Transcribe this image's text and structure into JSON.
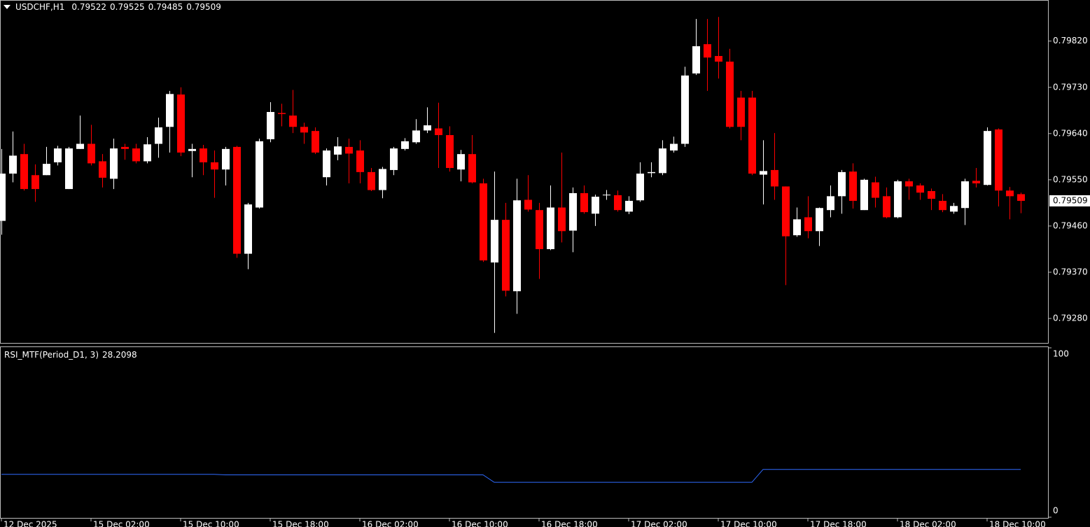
{
  "chart_data": [
    {
      "type": "candlestick",
      "symbol": "USDCHF,H1",
      "categories": [
        "12 Dec 2025",
        null,
        null,
        null,
        null,
        null,
        null,
        null,
        "15 Dec 02:00",
        null,
        null,
        null,
        null,
        null,
        null,
        null,
        "15 Dec 10:00",
        null,
        null,
        null,
        null,
        null,
        null,
        null,
        "15 Dec 18:00",
        null,
        null,
        null,
        null,
        null,
        null,
        null,
        "16 Dec 02:00",
        null,
        null,
        null,
        null,
        null,
        null,
        null,
        "16 Dec 10:00",
        null,
        null,
        null,
        null,
        null,
        null,
        null,
        "16 Dec 18:00",
        null,
        null,
        null,
        null,
        null,
        null,
        null,
        "17 Dec 02:00",
        null,
        null,
        null,
        null,
        null,
        null,
        null,
        "17 Dec 10:00",
        null,
        null,
        null,
        null,
        null,
        null,
        null,
        "17 Dec 18:00",
        null,
        null,
        null,
        null,
        null,
        null,
        null,
        "18 Dec 02:00",
        null,
        null,
        null,
        null,
        null,
        null,
        null,
        "18 Dec 10:00",
        null,
        null,
        null
      ],
      "open": [
        0.7947,
        0.79562,
        0.796,
        0.79559,
        0.79559,
        0.79584,
        0.79532,
        0.7961,
        0.7962,
        0.79586,
        0.79552,
        0.79614,
        0.79611,
        0.79586,
        0.7962,
        0.79653,
        0.79716,
        0.79606,
        0.79611,
        0.79584,
        0.7957,
        0.79614,
        0.79406,
        0.79496,
        0.79629,
        0.7968,
        0.79675,
        0.79653,
        0.79645,
        0.79555,
        0.79599,
        0.79614,
        0.79607,
        0.79565,
        0.7953,
        0.79569,
        0.7961,
        0.79623,
        0.79646,
        0.7965,
        0.79637,
        0.7957,
        0.796,
        0.79543,
        0.79389,
        0.79472,
        0.79333,
        0.79511,
        0.79491,
        0.79415,
        0.79496,
        0.79451,
        0.79524,
        0.79484,
        0.7952,
        0.7952,
        0.79488,
        0.7951,
        0.79563,
        0.79563,
        0.79607,
        0.7962,
        0.79757,
        0.79814,
        0.79791,
        0.7978,
        0.7971,
        0.7971,
        0.7956,
        0.79569,
        0.79537,
        0.79442,
        0.79477,
        0.7945,
        0.79491,
        0.79518,
        0.79566,
        0.79491,
        0.79545,
        0.79518,
        0.79477,
        0.79547,
        0.79539,
        0.79528,
        0.79509,
        0.79488,
        0.79495,
        0.79548,
        0.7954,
        0.79648,
        0.79529,
        0.79522
      ],
      "high": [
        0.7961,
        0.79644,
        0.7962,
        0.7958,
        0.79614,
        0.79616,
        0.79614,
        0.79675,
        0.79657,
        0.796,
        0.7963,
        0.7962,
        0.7962,
        0.79633,
        0.79671,
        0.79723,
        0.7973,
        0.7962,
        0.79618,
        0.79607,
        0.79614,
        0.79616,
        0.79505,
        0.7963,
        0.79701,
        0.79698,
        0.79725,
        0.79661,
        0.79652,
        0.79611,
        0.79633,
        0.7963,
        0.79627,
        0.79573,
        0.79575,
        0.79614,
        0.79631,
        0.79668,
        0.79691,
        0.797,
        0.79654,
        0.79608,
        0.79637,
        0.79552,
        0.79566,
        0.79505,
        0.79552,
        0.79559,
        0.79505,
        0.79539,
        0.79603,
        0.79535,
        0.79539,
        0.79521,
        0.7953,
        0.79529,
        0.79518,
        0.79584,
        0.79584,
        0.79627,
        0.79634,
        0.7977,
        0.79863,
        0.79863,
        0.79867,
        0.79805,
        0.79723,
        0.79723,
        0.79627,
        0.79641,
        0.79537,
        0.79496,
        0.79518,
        0.79496,
        0.79539,
        0.79569,
        0.79582,
        0.79552,
        0.79556,
        0.79535,
        0.7955,
        0.79552,
        0.79543,
        0.79533,
        0.79522,
        0.79505,
        0.79552,
        0.79573,
        0.79652,
        0.7965,
        0.79536,
        0.79525
      ],
      "low": [
        0.79443,
        0.79545,
        0.79529,
        0.79507,
        0.79559,
        0.79578,
        0.79532,
        0.7961,
        0.79578,
        0.79535,
        0.79532,
        0.79589,
        0.79582,
        0.79582,
        0.79593,
        0.79603,
        0.79596,
        0.79555,
        0.79559,
        0.79515,
        0.79539,
        0.79398,
        0.79376,
        0.79494,
        0.79623,
        0.79654,
        0.79641,
        0.7962,
        0.796,
        0.79539,
        0.79588,
        0.79543,
        0.79543,
        0.79528,
        0.79514,
        0.79559,
        0.79607,
        0.7962,
        0.79641,
        0.79573,
        0.79566,
        0.79547,
        0.79543,
        0.7939,
        0.79252,
        0.79323,
        0.79289,
        0.79488,
        0.79357,
        0.79413,
        0.79428,
        0.79409,
        0.79484,
        0.7946,
        0.79511,
        0.79488,
        0.79483,
        0.79507,
        0.79555,
        0.79559,
        0.79603,
        0.79614,
        0.79754,
        0.79723,
        0.79747,
        0.7965,
        0.79627,
        0.79559,
        0.79502,
        0.79511,
        0.79345,
        0.79439,
        0.79436,
        0.79421,
        0.79477,
        0.79484,
        0.79494,
        0.79491,
        0.79496,
        0.79475,
        0.79475,
        0.79511,
        0.79511,
        0.79491,
        0.79487,
        0.79484,
        0.79462,
        0.79535,
        0.79539,
        0.79498,
        0.79473,
        0.79485
      ],
      "close": [
        0.79562,
        0.79597,
        0.79532,
        0.79532,
        0.79581,
        0.79611,
        0.79611,
        0.7962,
        0.79582,
        0.79554,
        0.79611,
        0.7961,
        0.79586,
        0.79619,
        0.79652,
        0.79717,
        0.79603,
        0.7961,
        0.79584,
        0.7957,
        0.7961,
        0.79406,
        0.79502,
        0.79625,
        0.79682,
        0.79678,
        0.79653,
        0.79642,
        0.79603,
        0.79607,
        0.79615,
        0.79601,
        0.79565,
        0.7953,
        0.79571,
        0.79611,
        0.79625,
        0.79646,
        0.79656,
        0.79637,
        0.79573,
        0.796,
        0.79545,
        0.79393,
        0.79472,
        0.79334,
        0.7951,
        0.79492,
        0.79415,
        0.79496,
        0.7945,
        0.79524,
        0.79487,
        0.79517,
        0.79521,
        0.79491,
        0.79509,
        0.79562,
        0.79565,
        0.79611,
        0.7962,
        0.79753,
        0.7981,
        0.79788,
        0.7978,
        0.79653,
        0.79653,
        0.79562,
        0.79567,
        0.79537,
        0.7944,
        0.79473,
        0.7945,
        0.79495,
        0.79518,
        0.79565,
        0.79509,
        0.7955,
        0.79515,
        0.79477,
        0.79547,
        0.79537,
        0.79525,
        0.79513,
        0.79491,
        0.79499,
        0.79547,
        0.79543,
        0.79645,
        0.79529,
        0.79518,
        0.79509
      ],
      "up_color": "#ffffff",
      "down_color": "#ff0000",
      "ylim": [
        0.79231,
        0.799
      ],
      "yticks": [
        {
          "value": 0.7982,
          "label": "0.79820"
        },
        {
          "value": 0.7973,
          "label": "0.79730"
        },
        {
          "value": 0.7964,
          "label": "0.79640"
        },
        {
          "value": 0.7955,
          "label": "0.79550"
        },
        {
          "value": 0.7946,
          "label": "0.79460"
        },
        {
          "value": 0.7937,
          "label": "0.79370"
        },
        {
          "value": 0.7928,
          "label": "0.79280"
        }
      ]
    },
    {
      "type": "line",
      "title": "RSI_MTF(Period_D1, 3)",
      "values": [
        25.3,
        25.3,
        25.3,
        25.3,
        25.3,
        25.3,
        25.3,
        25.3,
        25.3,
        25.3,
        25.3,
        25.3,
        25.3,
        25.3,
        25.3,
        25.3,
        25.3,
        25.3,
        25.3,
        25.3,
        25,
        25,
        25,
        25,
        25,
        25,
        25,
        25,
        25,
        25,
        25,
        25,
        25,
        25,
        25,
        25,
        25,
        25,
        25,
        25,
        25,
        25,
        25,
        25,
        20.6,
        20.6,
        20.6,
        20.6,
        20.6,
        20.6,
        20.6,
        20.6,
        20.6,
        20.6,
        20.6,
        20.6,
        20.6,
        20.6,
        20.6,
        20.6,
        20.6,
        20.6,
        20.6,
        20.6,
        20.6,
        20.6,
        20.6,
        20.6,
        28.2098,
        28.2098,
        28.2098,
        28.2098,
        28.2098,
        28.2098,
        28.2098,
        28.2098,
        28.2098,
        28.2098,
        28.2098,
        28.2098,
        28.2098,
        28.2098,
        28.2098,
        28.2098,
        28.2098,
        28.2098,
        28.2098,
        28.2098,
        28.2098,
        28.2098,
        28.2098,
        28.2098
      ],
      "color": "#2f6bff",
      "ylim": [
        0,
        100
      ],
      "yticks": [
        0,
        100
      ]
    }
  ]
}
